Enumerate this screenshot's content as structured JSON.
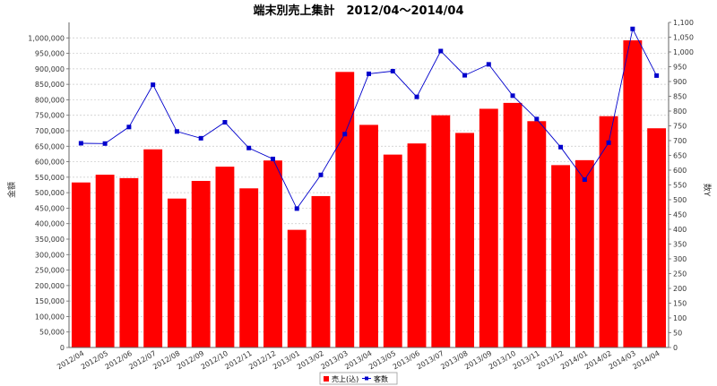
{
  "chart_data": {
    "type": "bar",
    "title": "端末別売上集計　2012/04～2014/04",
    "categories": [
      "2012/04",
      "2012/05",
      "2012/06",
      "2012/07",
      "2012/08",
      "2012/09",
      "2012/10",
      "2012/11",
      "2012/12",
      "2013/01",
      "2013/02",
      "2013/03",
      "2013/04",
      "2013/05",
      "2013/06",
      "2013/07",
      "2013/08",
      "2013/09",
      "2013/10",
      "2013/11",
      "2013/12",
      "2014/01",
      "2014/02",
      "2014/03",
      "2014/04"
    ],
    "y_left": {
      "label": "金額",
      "range": [
        0,
        1050000
      ],
      "ticks": [
        {
          "value": 0,
          "label": "0"
        },
        {
          "value": 50000,
          "label": "50,000"
        },
        {
          "value": 100000,
          "label": "100,000"
        },
        {
          "value": 150000,
          "label": "150,000"
        },
        {
          "value": 200000,
          "label": "200,000"
        },
        {
          "value": 250000,
          "label": "250,000"
        },
        {
          "value": 300000,
          "label": "300,000"
        },
        {
          "value": 350000,
          "label": "350,000"
        },
        {
          "value": 400000,
          "label": "400,000"
        },
        {
          "value": 450000,
          "label": "450,000"
        },
        {
          "value": 500000,
          "label": "500,000"
        },
        {
          "value": 550000,
          "label": "550,000"
        },
        {
          "value": 600000,
          "label": "600,000"
        },
        {
          "value": 650000,
          "label": "650,000"
        },
        {
          "value": 700000,
          "label": "700,000"
        },
        {
          "value": 750000,
          "label": "750,000"
        },
        {
          "value": 800000,
          "label": "800,000"
        },
        {
          "value": 850000,
          "label": "850,000"
        },
        {
          "value": 900000,
          "label": "900,000"
        },
        {
          "value": 950000,
          "label": "950,000"
        },
        {
          "value": 1000000,
          "label": "1,000,000"
        }
      ]
    },
    "y_right": {
      "label": "数Y",
      "range": [
        0,
        1100
      ],
      "ticks": [
        {
          "value": 0,
          "label": "0"
        },
        {
          "value": 50,
          "label": "50"
        },
        {
          "value": 100,
          "label": "100"
        },
        {
          "value": 150,
          "label": "150"
        },
        {
          "value": 200,
          "label": "200"
        },
        {
          "value": 250,
          "label": "250"
        },
        {
          "value": 300,
          "label": "300"
        },
        {
          "value": 350,
          "label": "350"
        },
        {
          "value": 400,
          "label": "400"
        },
        {
          "value": 450,
          "label": "450"
        },
        {
          "value": 500,
          "label": "500"
        },
        {
          "value": 550,
          "label": "550"
        },
        {
          "value": 600,
          "label": "600"
        },
        {
          "value": 650,
          "label": "650"
        },
        {
          "value": 700,
          "label": "700"
        },
        {
          "value": 750,
          "label": "750"
        },
        {
          "value": 800,
          "label": "800"
        },
        {
          "value": 850,
          "label": "850"
        },
        {
          "value": 900,
          "label": "900"
        },
        {
          "value": 950,
          "label": "950"
        },
        {
          "value": 1000,
          "label": "1,000"
        },
        {
          "value": 1050,
          "label": "1,050"
        },
        {
          "value": 1100,
          "label": "1,100"
        }
      ]
    },
    "series": [
      {
        "name": "売上(込)",
        "type": "bar",
        "axis": "left",
        "color": "#ff0000",
        "values": [
          533000,
          558000,
          547000,
          640000,
          481000,
          538000,
          584000,
          514000,
          604000,
          380000,
          489000,
          890000,
          719000,
          623000,
          659000,
          750000,
          693000,
          771000,
          790000,
          731000,
          589000,
          605000,
          747000,
          992000,
          708000
        ]
      },
      {
        "name": "客数",
        "type": "line",
        "axis": "right",
        "color": "#0000cc",
        "values": [
          691,
          690,
          746,
          889,
          731,
          708,
          762,
          675,
          638,
          470,
          584,
          722,
          926,
          935,
          848,
          1003,
          921,
          958,
          852,
          773,
          678,
          568,
          693,
          1078,
          920
        ]
      }
    ],
    "grid": true,
    "legend_position": "bottom-center"
  }
}
